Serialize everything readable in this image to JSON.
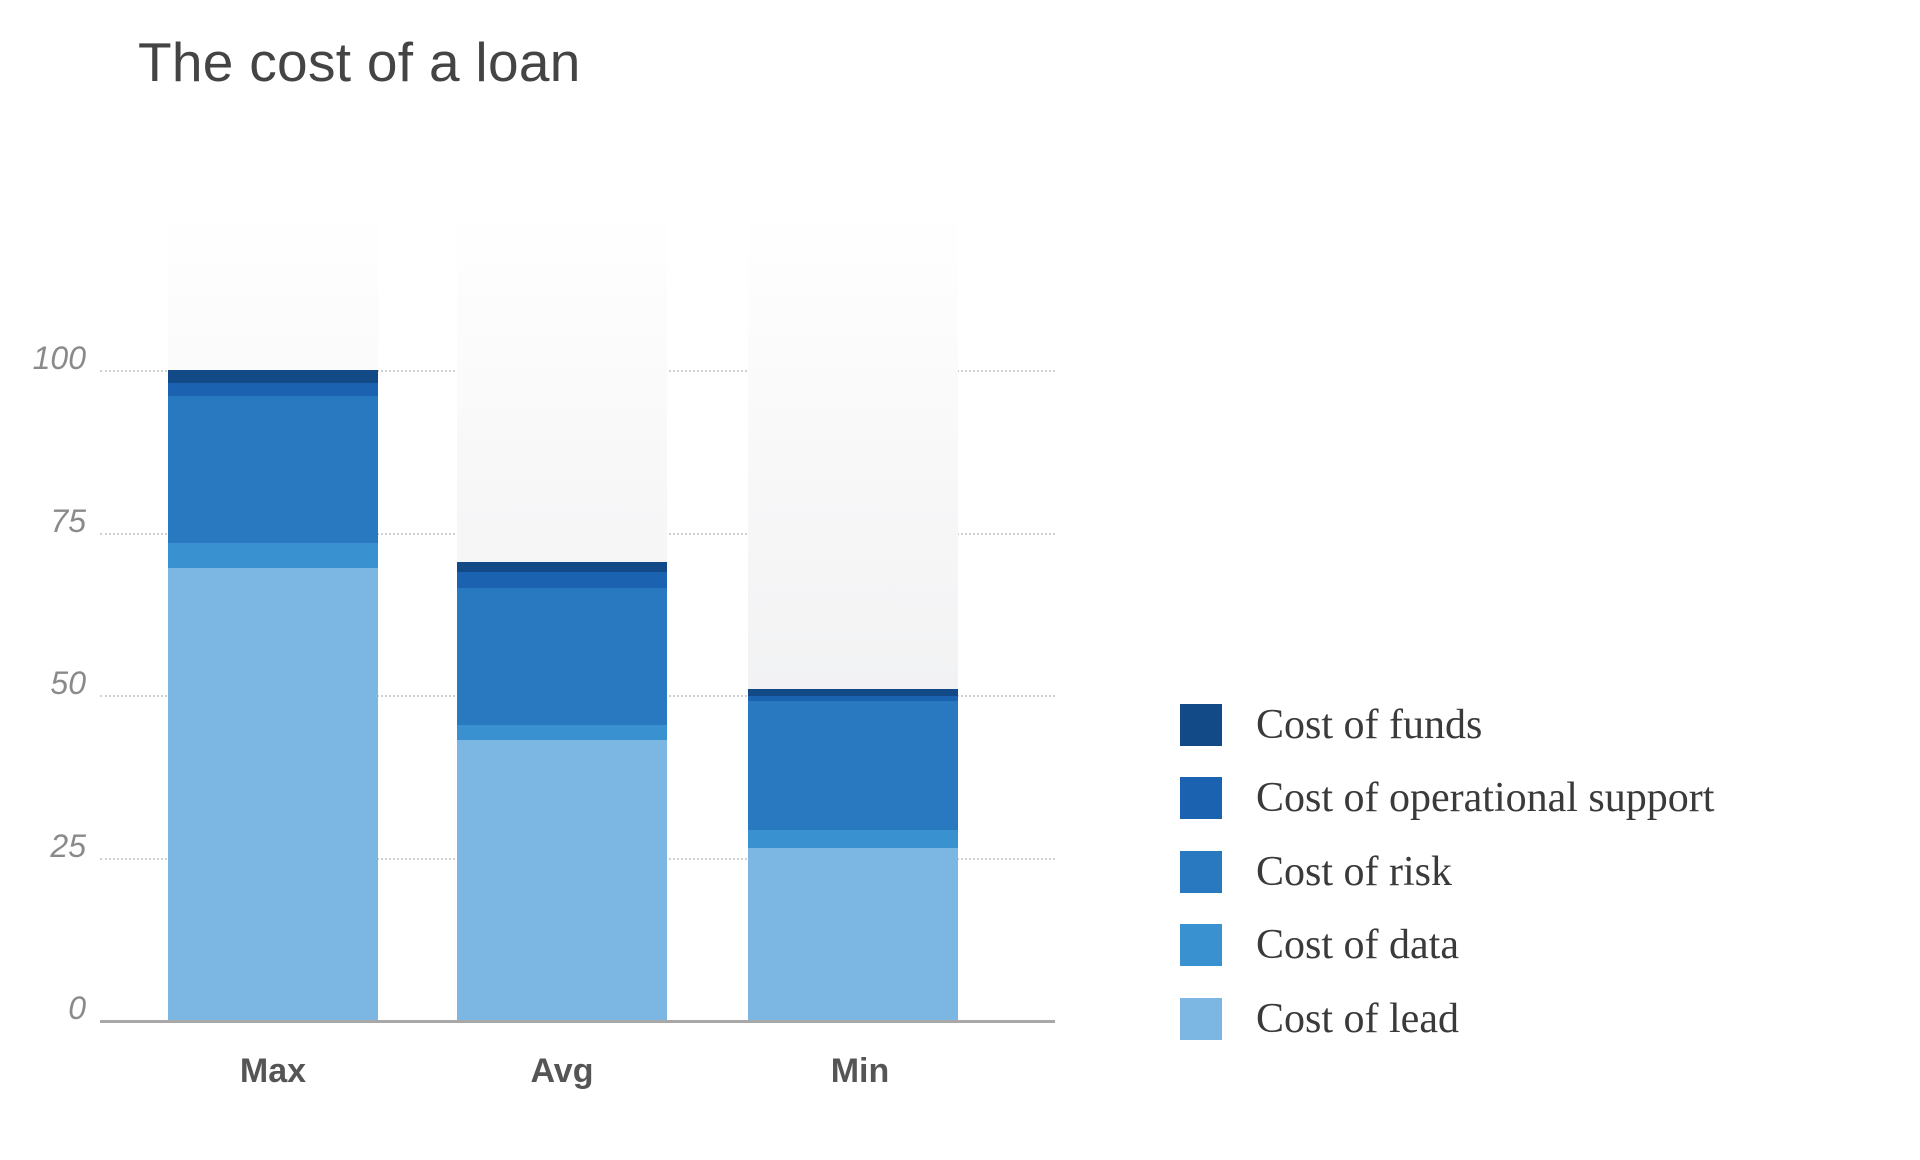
{
  "chart_data": {
    "type": "bar",
    "stacked": true,
    "title": "The cost of a loan",
    "xlabel": "",
    "ylabel": "",
    "categories": [
      "Max",
      "Avg",
      "Min"
    ],
    "ylim": [
      0,
      100
    ],
    "yticks": [
      0,
      25,
      50,
      75,
      100
    ],
    "grid": true,
    "legend_position": "right",
    "series": [
      {
        "name": "Cost of lead",
        "color": "#7cb7e3",
        "values": [
          69.5,
          43.1,
          26.5
        ]
      },
      {
        "name": "Cost of data",
        "color": "#3a91cf",
        "values": [
          3.9,
          2.3,
          2.7
        ]
      },
      {
        "name": "Cost of risk",
        "color": "#2979c1",
        "values": [
          22.6,
          21.1,
          19.9
        ]
      },
      {
        "name": "Cost of operational support",
        "color": "#1b62b0",
        "values": [
          2.0,
          2.4,
          0.8
        ]
      },
      {
        "name": "Cost of funds",
        "color": "#124a87",
        "values": [
          2.0,
          1.6,
          1.1
        ]
      }
    ],
    "totals": [
      100,
      70.5,
      51.0
    ]
  },
  "legend": [
    {
      "label": "Cost of funds",
      "color": "#124a87"
    },
    {
      "label": "Cost of operational support",
      "color": "#1b62b0"
    },
    {
      "label": "Cost of risk",
      "color": "#2979c1"
    },
    {
      "label": "Cost of data",
      "color": "#3a91cf"
    },
    {
      "label": "Cost of lead",
      "color": "#7cb7e3"
    }
  ],
  "ytick_labels": [
    "0",
    "25",
    "50",
    "75",
    "100"
  ]
}
